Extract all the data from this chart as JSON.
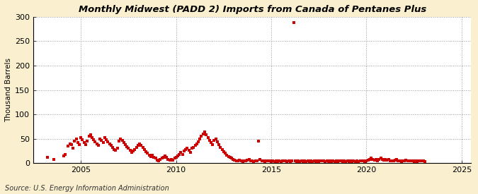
{
  "title": "Monthly Midwest (PADD 2) Imports from Canada of Pentanes Plus",
  "ylabel": "Thousand Barrels",
  "source": "Source: U.S. Energy Information Administration",
  "fig_bg_color": "#FAF0D0",
  "plot_bg_color": "#FFFFFF",
  "dot_color": "#CC0000",
  "xlim_start": 2002.5,
  "xlim_end": 2025.5,
  "ylim": [
    0,
    300
  ],
  "yticks": [
    0,
    50,
    100,
    150,
    200,
    250,
    300
  ],
  "xticks": [
    2005,
    2010,
    2015,
    2020,
    2025
  ],
  "data": [
    [
      2003.25,
      12
    ],
    [
      2003.58,
      8
    ],
    [
      2004.08,
      15
    ],
    [
      2004.17,
      18
    ],
    [
      2004.33,
      35
    ],
    [
      2004.42,
      40
    ],
    [
      2004.5,
      38
    ],
    [
      2004.58,
      30
    ],
    [
      2004.67,
      45
    ],
    [
      2004.75,
      50
    ],
    [
      2004.83,
      42
    ],
    [
      2004.92,
      38
    ],
    [
      2005.0,
      52
    ],
    [
      2005.08,
      48
    ],
    [
      2005.17,
      42
    ],
    [
      2005.25,
      38
    ],
    [
      2005.33,
      45
    ],
    [
      2005.42,
      55
    ],
    [
      2005.5,
      58
    ],
    [
      2005.58,
      52
    ],
    [
      2005.67,
      48
    ],
    [
      2005.75,
      44
    ],
    [
      2005.83,
      40
    ],
    [
      2005.92,
      36
    ],
    [
      2006.0,
      50
    ],
    [
      2006.08,
      46
    ],
    [
      2006.17,
      42
    ],
    [
      2006.25,
      52
    ],
    [
      2006.33,
      48
    ],
    [
      2006.42,
      44
    ],
    [
      2006.5,
      40
    ],
    [
      2006.58,
      36
    ],
    [
      2006.67,
      32
    ],
    [
      2006.75,
      28
    ],
    [
      2006.83,
      26
    ],
    [
      2006.92,
      30
    ],
    [
      2007.0,
      45
    ],
    [
      2007.08,
      50
    ],
    [
      2007.17,
      46
    ],
    [
      2007.25,
      42
    ],
    [
      2007.33,
      38
    ],
    [
      2007.42,
      34
    ],
    [
      2007.5,
      30
    ],
    [
      2007.58,
      26
    ],
    [
      2007.67,
      22
    ],
    [
      2007.75,
      25
    ],
    [
      2007.83,
      28
    ],
    [
      2007.92,
      32
    ],
    [
      2008.0,
      36
    ],
    [
      2008.08,
      40
    ],
    [
      2008.17,
      36
    ],
    [
      2008.25,
      32
    ],
    [
      2008.33,
      28
    ],
    [
      2008.42,
      24
    ],
    [
      2008.5,
      20
    ],
    [
      2008.58,
      16
    ],
    [
      2008.67,
      14
    ],
    [
      2008.75,
      16
    ],
    [
      2008.83,
      12
    ],
    [
      2008.92,
      10
    ],
    [
      2009.0,
      6
    ],
    [
      2009.08,
      4
    ],
    [
      2009.17,
      8
    ],
    [
      2009.25,
      10
    ],
    [
      2009.33,
      12
    ],
    [
      2009.42,
      15
    ],
    [
      2009.5,
      12
    ],
    [
      2009.58,
      8
    ],
    [
      2009.67,
      6
    ],
    [
      2009.75,
      8
    ],
    [
      2009.83,
      6
    ],
    [
      2009.92,
      10
    ],
    [
      2010.0,
      12
    ],
    [
      2010.08,
      15
    ],
    [
      2010.17,
      18
    ],
    [
      2010.25,
      22
    ],
    [
      2010.33,
      18
    ],
    [
      2010.42,
      25
    ],
    [
      2010.5,
      28
    ],
    [
      2010.58,
      30
    ],
    [
      2010.67,
      26
    ],
    [
      2010.75,
      22
    ],
    [
      2010.83,
      30
    ],
    [
      2010.92,
      32
    ],
    [
      2011.0,
      36
    ],
    [
      2011.08,
      40
    ],
    [
      2011.17,
      44
    ],
    [
      2011.25,
      50
    ],
    [
      2011.33,
      55
    ],
    [
      2011.42,
      60
    ],
    [
      2011.5,
      64
    ],
    [
      2011.58,
      58
    ],
    [
      2011.67,
      52
    ],
    [
      2011.75,
      46
    ],
    [
      2011.83,
      42
    ],
    [
      2011.92,
      38
    ],
    [
      2012.0,
      46
    ],
    [
      2012.08,
      50
    ],
    [
      2012.17,
      44
    ],
    [
      2012.25,
      38
    ],
    [
      2012.33,
      32
    ],
    [
      2012.42,
      28
    ],
    [
      2012.5,
      24
    ],
    [
      2012.58,
      20
    ],
    [
      2012.67,
      16
    ],
    [
      2012.75,
      14
    ],
    [
      2012.83,
      12
    ],
    [
      2012.92,
      10
    ],
    [
      2013.0,
      8
    ],
    [
      2013.08,
      6
    ],
    [
      2013.17,
      5
    ],
    [
      2013.25,
      4
    ],
    [
      2013.33,
      6
    ],
    [
      2013.42,
      5
    ],
    [
      2013.5,
      3
    ],
    [
      2013.58,
      5
    ],
    [
      2013.67,
      4
    ],
    [
      2013.75,
      6
    ],
    [
      2013.83,
      8
    ],
    [
      2013.92,
      5
    ],
    [
      2014.0,
      4
    ],
    [
      2014.08,
      3
    ],
    [
      2014.17,
      5
    ],
    [
      2014.25,
      4
    ],
    [
      2014.33,
      45
    ],
    [
      2014.42,
      8
    ],
    [
      2014.5,
      5
    ],
    [
      2014.58,
      4
    ],
    [
      2014.67,
      3
    ],
    [
      2014.75,
      4
    ],
    [
      2014.83,
      5
    ],
    [
      2014.92,
      4
    ],
    [
      2015.0,
      3
    ],
    [
      2015.08,
      4
    ],
    [
      2015.17,
      3
    ],
    [
      2015.25,
      4
    ],
    [
      2015.33,
      3
    ],
    [
      2015.42,
      4
    ],
    [
      2015.5,
      3
    ],
    [
      2015.58,
      4
    ],
    [
      2015.67,
      5
    ],
    [
      2015.75,
      4
    ],
    [
      2015.83,
      3
    ],
    [
      2015.92,
      4
    ],
    [
      2016.0,
      3
    ],
    [
      2016.08,
      4
    ],
    [
      2016.17,
      288
    ],
    [
      2016.25,
      4
    ],
    [
      2016.33,
      3
    ],
    [
      2016.42,
      4
    ],
    [
      2016.5,
      3
    ],
    [
      2016.58,
      4
    ],
    [
      2016.67,
      3
    ],
    [
      2016.75,
      4
    ],
    [
      2016.83,
      3
    ],
    [
      2016.92,
      4
    ],
    [
      2017.0,
      3
    ],
    [
      2017.08,
      4
    ],
    [
      2017.17,
      3
    ],
    [
      2017.25,
      4
    ],
    [
      2017.33,
      3
    ],
    [
      2017.42,
      4
    ],
    [
      2017.5,
      3
    ],
    [
      2017.58,
      4
    ],
    [
      2017.67,
      5
    ],
    [
      2017.75,
      4
    ],
    [
      2017.83,
      3
    ],
    [
      2017.92,
      4
    ],
    [
      2018.0,
      3
    ],
    [
      2018.08,
      4
    ],
    [
      2018.17,
      3
    ],
    [
      2018.25,
      4
    ],
    [
      2018.33,
      3
    ],
    [
      2018.42,
      4
    ],
    [
      2018.5,
      3
    ],
    [
      2018.58,
      5
    ],
    [
      2018.67,
      4
    ],
    [
      2018.75,
      3
    ],
    [
      2018.83,
      4
    ],
    [
      2018.92,
      3
    ],
    [
      2019.0,
      4
    ],
    [
      2019.08,
      3
    ],
    [
      2019.17,
      4
    ],
    [
      2019.25,
      3
    ],
    [
      2019.33,
      4
    ],
    [
      2019.42,
      3
    ],
    [
      2019.5,
      4
    ],
    [
      2019.58,
      3
    ],
    [
      2019.67,
      4
    ],
    [
      2019.75,
      5
    ],
    [
      2019.83,
      4
    ],
    [
      2019.92,
      3
    ],
    [
      2020.0,
      4
    ],
    [
      2020.08,
      6
    ],
    [
      2020.17,
      8
    ],
    [
      2020.25,
      10
    ],
    [
      2020.33,
      8
    ],
    [
      2020.42,
      6
    ],
    [
      2020.5,
      8
    ],
    [
      2020.58,
      5
    ],
    [
      2020.67,
      8
    ],
    [
      2020.75,
      10
    ],
    [
      2020.83,
      8
    ],
    [
      2020.92,
      6
    ],
    [
      2021.0,
      8
    ],
    [
      2021.08,
      6
    ],
    [
      2021.17,
      8
    ],
    [
      2021.25,
      5
    ],
    [
      2021.33,
      4
    ],
    [
      2021.42,
      5
    ],
    [
      2021.5,
      6
    ],
    [
      2021.58,
      8
    ],
    [
      2021.67,
      5
    ],
    [
      2021.75,
      4
    ],
    [
      2021.83,
      3
    ],
    [
      2021.92,
      4
    ],
    [
      2022.0,
      5
    ],
    [
      2022.08,
      6
    ],
    [
      2022.17,
      5
    ],
    [
      2022.25,
      4
    ],
    [
      2022.33,
      5
    ],
    [
      2022.42,
      4
    ],
    [
      2022.5,
      3
    ],
    [
      2022.58,
      4
    ],
    [
      2022.67,
      3
    ],
    [
      2022.75,
      4
    ],
    [
      2022.83,
      5
    ],
    [
      2022.92,
      4
    ],
    [
      2023.0,
      5
    ],
    [
      2023.08,
      3
    ]
  ]
}
